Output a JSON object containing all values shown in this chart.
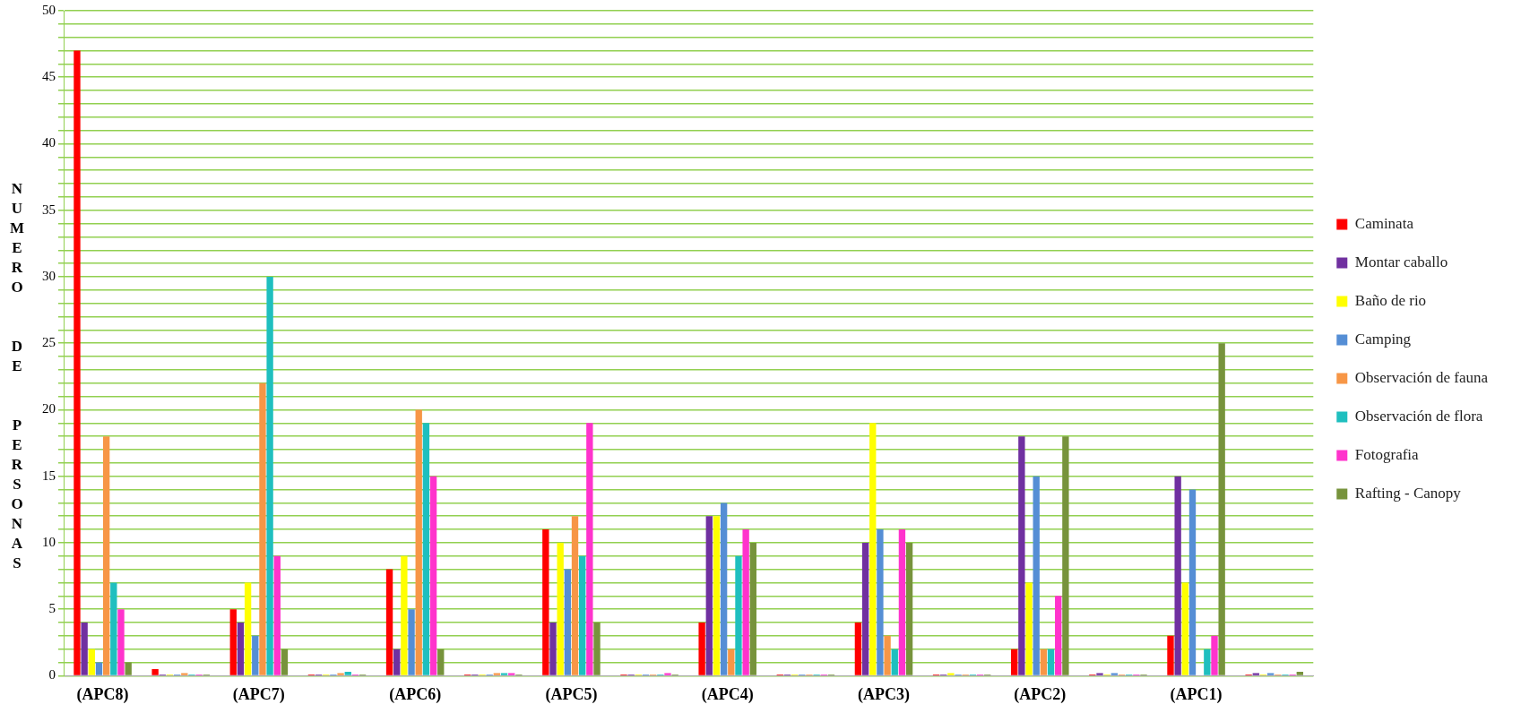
{
  "chart_data": {
    "type": "bar",
    "ylabel": "NUMERO DE PERSONAS",
    "categories": [
      "(APC8)",
      null,
      "(APC7)",
      null,
      "(APC6)",
      null,
      "(APC5)",
      null,
      "(APC4)",
      null,
      "(APC3)",
      null,
      "(APC2)",
      null,
      "(APC1)",
      null
    ],
    "series": [
      {
        "name": "Caminata",
        "color": "#ff0000",
        "values": [
          47,
          0.5,
          5,
          0.1,
          8,
          0.1,
          11,
          0.1,
          4,
          0.1,
          4,
          0.1,
          2,
          0.1,
          3,
          0.1
        ]
      },
      {
        "name": "Montar caballo",
        "color": "#7030a0",
        "values": [
          4,
          0.1,
          4,
          0.1,
          2,
          0.1,
          4,
          0.1,
          12,
          0.1,
          10,
          0.1,
          18,
          0.2,
          15,
          0.2
        ]
      },
      {
        "name": "Baño de rio",
        "color": "#ffff00",
        "values": [
          2,
          0.1,
          7,
          0.1,
          9,
          0.1,
          10,
          0.1,
          12,
          0.1,
          19,
          0.2,
          7,
          0.1,
          7,
          0.1
        ]
      },
      {
        "name": "Camping",
        "color": "#558ed5",
        "values": [
          1,
          0.1,
          3,
          0.1,
          5,
          0.1,
          8,
          0.1,
          13,
          0.1,
          11,
          0.1,
          15,
          0.2,
          14,
          0.2
        ]
      },
      {
        "name": "Observación de fauna",
        "color": "#f79646",
        "values": [
          18,
          0.2,
          22,
          0.2,
          20,
          0.2,
          12,
          0.1,
          2,
          0.1,
          3,
          0.1,
          2,
          0.1,
          0,
          0.1
        ]
      },
      {
        "name": "Observación de flora",
        "color": "#1fbfbf",
        "values": [
          7,
          0.1,
          30,
          0.3,
          19,
          0.2,
          9,
          0.1,
          9,
          0.1,
          2,
          0.1,
          2,
          0.1,
          2,
          0.1
        ]
      },
      {
        "name": "Fotografia",
        "color": "#ff33cc",
        "values": [
          5,
          0.1,
          9,
          0.1,
          15,
          0.2,
          19,
          0.2,
          11,
          0.1,
          11,
          0.1,
          6,
          0.1,
          3,
          0.1
        ]
      },
      {
        "name": "Rafting - Canopy",
        "color": "#77933c",
        "values": [
          1,
          0.1,
          2,
          0.1,
          2,
          0.1,
          4,
          0.1,
          10,
          0.1,
          10,
          0.1,
          18,
          0.1,
          25,
          0.3
        ]
      }
    ],
    "ylim": [
      0,
      50
    ],
    "yticks": [
      0,
      {
        "value": 1,
        "label": null
      },
      {
        "value": 2,
        "label": null
      },
      {
        "value": 3,
        "label": null
      },
      {
        "value": 4,
        "label": null
      },
      5,
      {
        "value": 6,
        "label": null
      },
      {
        "value": 7,
        "label": null
      },
      {
        "value": 8,
        "label": null
      },
      {
        "value": 9,
        "label": null
      },
      10,
      {
        "value": 11,
        "label": null
      },
      {
        "value": 12,
        "label": null
      },
      {
        "value": 13,
        "label": null
      },
      {
        "value": 14,
        "label": null
      },
      15,
      {
        "value": 16,
        "label": null
      },
      {
        "value": 17,
        "label": null
      },
      {
        "value": 18,
        "label": null
      },
      {
        "value": 19,
        "label": null
      },
      20,
      {
        "value": 21,
        "label": null
      },
      {
        "value": 22,
        "label": null
      },
      {
        "value": 23,
        "label": null
      },
      {
        "value": 24,
        "label": null
      },
      25,
      {
        "value": 26,
        "label": null
      },
      {
        "value": 27,
        "label": null
      },
      {
        "value": 28,
        "label": null
      },
      {
        "value": 29,
        "label": null
      },
      30,
      {
        "value": 31,
        "label": null
      },
      {
        "value": 32,
        "label": null
      },
      {
        "value": 33,
        "label": null
      },
      {
        "value": 34,
        "label": null
      },
      35,
      {
        "value": 36,
        "label": null
      },
      {
        "value": 37,
        "label": null
      },
      {
        "value": 38,
        "label": null
      },
      {
        "value": 39,
        "label": null
      },
      40,
      {
        "value": 41,
        "label": null
      },
      {
        "value": 42,
        "label": null
      },
      {
        "value": 43,
        "label": null
      },
      {
        "value": 44,
        "label": null
      },
      45,
      {
        "value": 46,
        "label": null
      },
      {
        "value": 47,
        "label": null
      },
      {
        "value": 48,
        "label": null
      },
      {
        "value": 49,
        "label": null
      },
      50
    ],
    "grid": "y",
    "legend": "right"
  }
}
